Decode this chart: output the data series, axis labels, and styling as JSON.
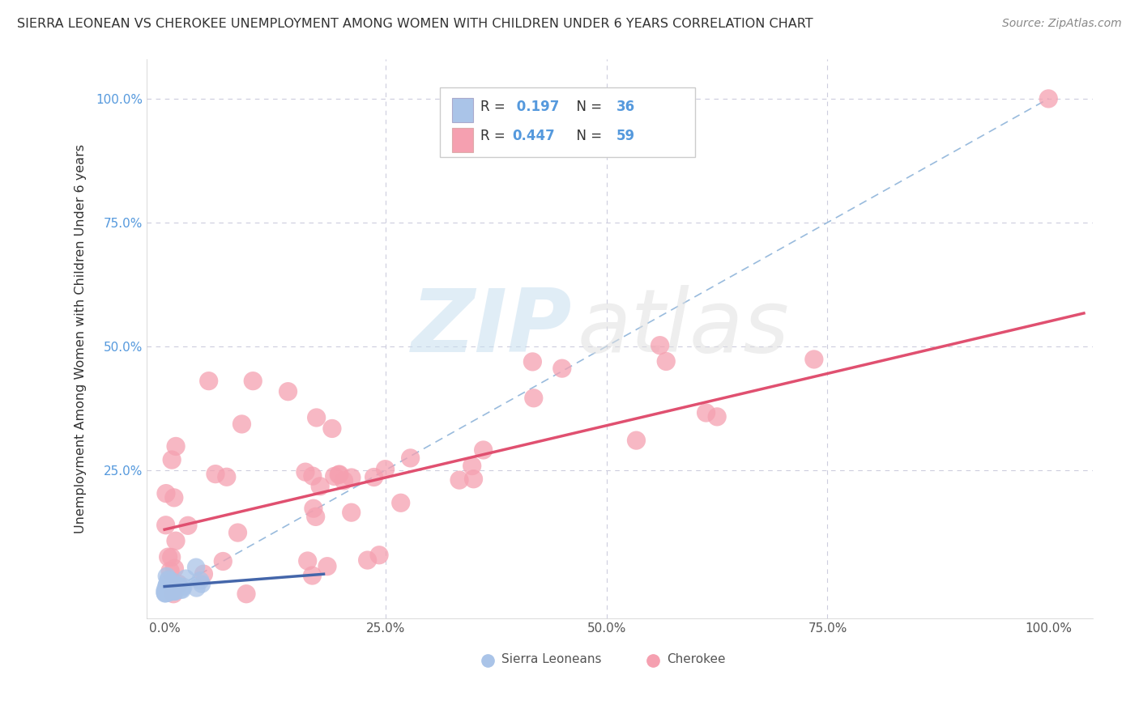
{
  "title": "SIERRA LEONEAN VS CHEROKEE UNEMPLOYMENT AMONG WOMEN WITH CHILDREN UNDER 6 YEARS CORRELATION CHART",
  "source": "Source: ZipAtlas.com",
  "ylabel": "Unemployment Among Women with Children Under 6 years",
  "background_color": "#ffffff",
  "sierra_color": "#aac4e8",
  "cherokee_color": "#f5a0b0",
  "sierra_trend_color": "#4466aa",
  "cherokee_trend_color": "#e05070",
  "dashed_line_color": "#99bbdd",
  "grid_color": "#ccccdd",
  "tick_color": "#5599dd",
  "legend_sierra_R": "0.197",
  "legend_sierra_N": "36",
  "legend_cherokee_R": "0.447",
  "legend_cherokee_N": "59",
  "legend_R_label": "R = ",
  "legend_N_label": "N = ",
  "bottom_label_sierra": "Sierra Leoneans",
  "bottom_label_cherokee": "Cherokee",
  "xlim": [
    -0.02,
    1.05
  ],
  "ylim": [
    -0.05,
    1.08
  ],
  "x_ticks": [
    0.0,
    0.25,
    0.5,
    0.75,
    1.0
  ],
  "x_tick_labels": [
    "0.0%",
    "25.0%",
    "50.0%",
    "75.0%",
    "100.0%"
  ],
  "y_ticks": [
    0.0,
    0.25,
    0.5,
    0.75,
    1.0
  ],
  "y_tick_labels": [
    "",
    "25.0%",
    "50.0%",
    "75.0%",
    "100.0%"
  ]
}
